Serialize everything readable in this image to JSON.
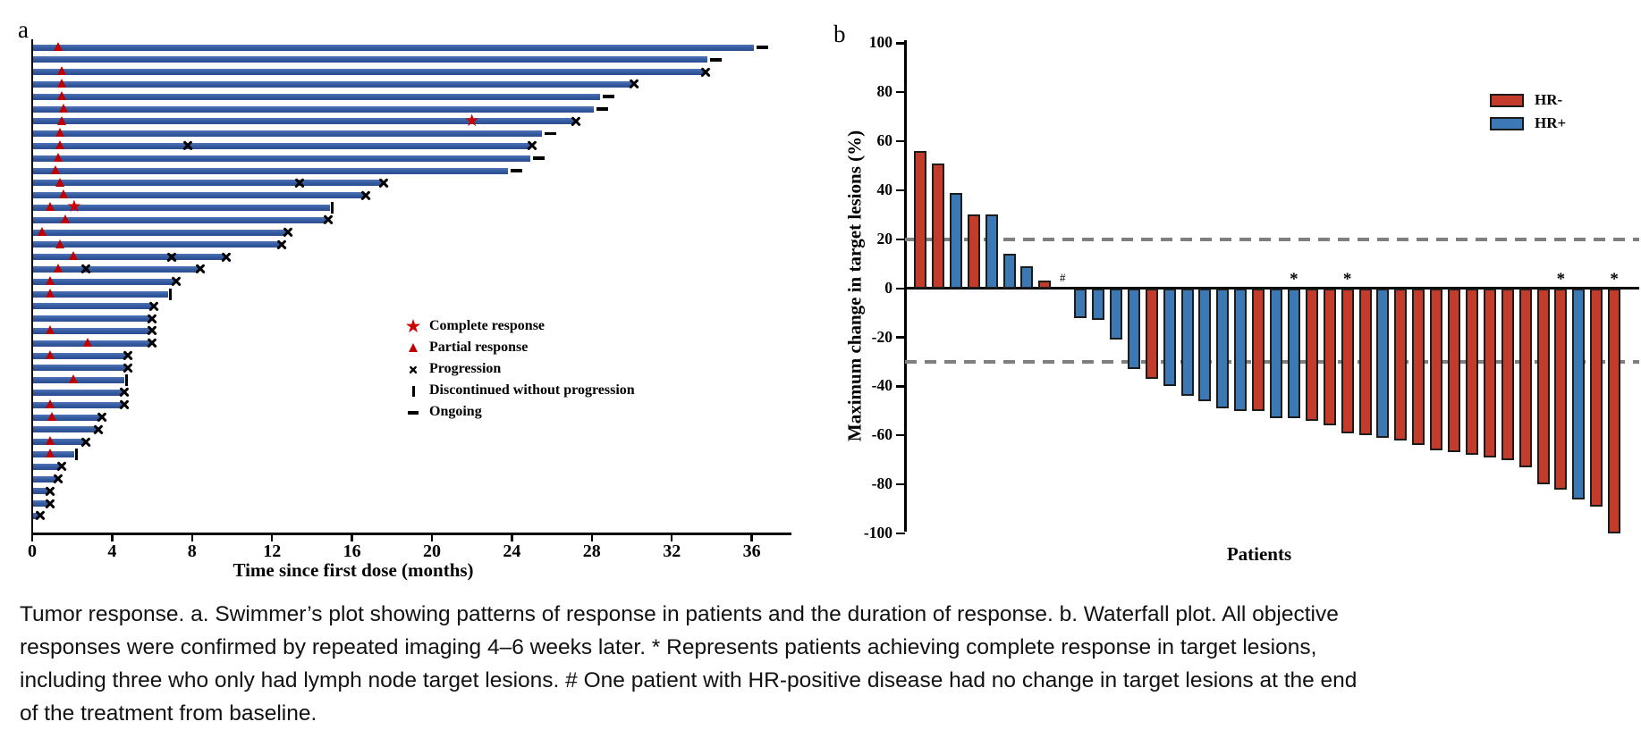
{
  "figure": {
    "panel_a_label": "a",
    "panel_b_label": "b",
    "caption": "Tumor response. a. Swimmer’s plot showing patterns of response in patients and the duration of response. b. Waterfall plot. All objective responses were confirmed by repeated imaging 4–6 weeks later. * Represents patients achieving complete response in target lesions, including three who only had lymph node target lesions. # One patient with HR-positive disease had no change in target lesions at the end of the treatment from baseline."
  },
  "colors": {
    "swimmer_bar_blue": "#33589d",
    "marker_red": "#c00000",
    "star_red": "#cc0000",
    "black": "#000000",
    "dashed_gray": "#7f7f7f",
    "hr_negative_red": "#c23b2b",
    "hr_positive_blue": "#3c79b4"
  },
  "chart_data": [
    {
      "type": "bar",
      "subtype": "swimmer-plot",
      "title": "",
      "xlabel": "Time since first dose (months)",
      "ylabel": "",
      "x_ticks": [
        0,
        4,
        8,
        12,
        16,
        20,
        24,
        28,
        32,
        36
      ],
      "xlim": [
        0,
        38
      ],
      "grid": false,
      "legend_position": "center-right",
      "legend": [
        {
          "marker": "star",
          "label": "Complete response"
        },
        {
          "marker": "triangle",
          "label": "Partial response"
        },
        {
          "marker": "x",
          "label": "Progression"
        },
        {
          "marker": "vbar",
          "label": "Discontinued without progression"
        },
        {
          "marker": "dash",
          "label": "Ongoing"
        }
      ],
      "marker_meaning": {
        "star": "Complete response",
        "triangle": "Partial response",
        "x": "Progression",
        "vbar": "Discontinued without progression",
        "dash": "Ongoing"
      },
      "bars": [
        {
          "len": 36.1,
          "end": "ongoing",
          "pr": [
            1.3
          ]
        },
        {
          "len": 33.8,
          "end": "ongoing",
          "pr": []
        },
        {
          "len": 33.6,
          "end": "progression",
          "pr": [
            1.5
          ]
        },
        {
          "len": 30.0,
          "end": "progression",
          "pr": [
            1.5
          ]
        },
        {
          "len": 28.4,
          "end": "ongoing",
          "pr": [
            1.5
          ]
        },
        {
          "len": 28.1,
          "end": "ongoing",
          "pr": [
            1.6
          ]
        },
        {
          "len": 27.1,
          "end": "progression",
          "pr": [
            1.5
          ],
          "cr": [
            22.0
          ]
        },
        {
          "len": 25.5,
          "end": "ongoing",
          "pr": [
            1.4
          ]
        },
        {
          "len": 24.9,
          "end": "progression",
          "pr": [
            1.4
          ],
          "px": [
            7.8
          ]
        },
        {
          "len": 24.9,
          "end": "ongoing",
          "pr": [
            1.3
          ]
        },
        {
          "len": 23.8,
          "end": "ongoing",
          "pr": [
            1.2
          ]
        },
        {
          "len": 17.5,
          "end": "progression",
          "pr": [
            1.4
          ],
          "px": [
            13.4
          ]
        },
        {
          "len": 16.6,
          "end": "progression",
          "pr": [
            1.6
          ]
        },
        {
          "len": 14.9,
          "end": "discontinued",
          "pr": [
            0.9
          ],
          "cr": [
            2.1
          ]
        },
        {
          "len": 14.7,
          "end": "progression",
          "pr": [
            1.7
          ]
        },
        {
          "len": 12.7,
          "end": "progression",
          "pr": [
            0.5
          ]
        },
        {
          "len": 12.4,
          "end": "progression",
          "pr": [
            1.4
          ]
        },
        {
          "len": 9.6,
          "end": "progression",
          "pr": [
            2.1
          ],
          "px": [
            7.0
          ]
        },
        {
          "len": 8.3,
          "end": "progression",
          "pr": [
            1.3
          ],
          "px": [
            2.7
          ]
        },
        {
          "len": 7.1,
          "end": "progression",
          "pr": [
            0.9
          ]
        },
        {
          "len": 6.8,
          "end": "discontinued",
          "pr": [
            0.9
          ]
        },
        {
          "len": 6.0,
          "end": "progression",
          "pr": []
        },
        {
          "len": 5.9,
          "end": "progression",
          "pr": []
        },
        {
          "len": 5.9,
          "end": "progression",
          "pr": [
            0.9
          ]
        },
        {
          "len": 5.9,
          "end": "progression",
          "pr": [
            2.8
          ]
        },
        {
          "len": 4.7,
          "end": "progression",
          "pr": [
            0.9
          ]
        },
        {
          "len": 4.7,
          "end": "progression",
          "pr": []
        },
        {
          "len": 4.6,
          "end": "discontinued",
          "pr": [
            2.1
          ]
        },
        {
          "len": 4.5,
          "end": "progression",
          "pr": []
        },
        {
          "len": 4.5,
          "end": "progression",
          "pr": [
            0.9
          ]
        },
        {
          "len": 3.4,
          "end": "progression",
          "pr": [
            1.0
          ]
        },
        {
          "len": 3.2,
          "end": "progression",
          "pr": []
        },
        {
          "len": 2.6,
          "end": "progression",
          "pr": [
            0.9
          ]
        },
        {
          "len": 2.1,
          "end": "discontinued",
          "pr": [
            0.9
          ]
        },
        {
          "len": 1.4,
          "end": "progression",
          "pr": []
        },
        {
          "len": 1.2,
          "end": "progression",
          "pr": []
        },
        {
          "len": 0.8,
          "end": "progression",
          "pr": []
        },
        {
          "len": 0.8,
          "end": "progression",
          "pr": []
        },
        {
          "len": 0.3,
          "end": "progression",
          "pr": []
        }
      ]
    },
    {
      "type": "bar",
      "subtype": "waterfall-plot",
      "title": "",
      "xlabel": "Patients",
      "ylabel": "Maximum change in target lesions (%)",
      "y_ticks": [
        100,
        80,
        60,
        40,
        20,
        0,
        -20,
        -40,
        -60,
        -80,
        -100
      ],
      "ylim": [
        -100,
        100
      ],
      "grid": false,
      "reference_lines": [
        20,
        -30
      ],
      "legend_position": "top-right",
      "legend": [
        {
          "label": "HR-",
          "color": "#c23b2b"
        },
        {
          "label": "HR+",
          "color": "#3c79b4"
        }
      ],
      "annotations_meaning": {
        "*": "complete response in target lesions",
        "#": "no change in target lesions from baseline"
      },
      "bars": [
        {
          "v": 56,
          "group": "HR-"
        },
        {
          "v": 51,
          "group": "HR-"
        },
        {
          "v": 39,
          "group": "HR+"
        },
        {
          "v": 30,
          "group": "HR-"
        },
        {
          "v": 30,
          "group": "HR+"
        },
        {
          "v": 14,
          "group": "HR+"
        },
        {
          "v": 9,
          "group": "HR+"
        },
        {
          "v": 3,
          "group": "HR-"
        },
        {
          "v": 0,
          "group": "HR+",
          "note": "#"
        },
        {
          "v": -12,
          "group": "HR+"
        },
        {
          "v": -13,
          "group": "HR+"
        },
        {
          "v": -21,
          "group": "HR+"
        },
        {
          "v": -33,
          "group": "HR+"
        },
        {
          "v": -37,
          "group": "HR-"
        },
        {
          "v": -40,
          "group": "HR+"
        },
        {
          "v": -44,
          "group": "HR+"
        },
        {
          "v": -46,
          "group": "HR+"
        },
        {
          "v": -49,
          "group": "HR+"
        },
        {
          "v": -50,
          "group": "HR+"
        },
        {
          "v": -50,
          "group": "HR-"
        },
        {
          "v": -53,
          "group": "HR+"
        },
        {
          "v": -53,
          "group": "HR+",
          "note": "*"
        },
        {
          "v": -54,
          "group": "HR-"
        },
        {
          "v": -56,
          "group": "HR-"
        },
        {
          "v": -59,
          "group": "HR-",
          "note": "*"
        },
        {
          "v": -60,
          "group": "HR-"
        },
        {
          "v": -61,
          "group": "HR+"
        },
        {
          "v": -62,
          "group": "HR-"
        },
        {
          "v": -64,
          "group": "HR-"
        },
        {
          "v": -66,
          "group": "HR-"
        },
        {
          "v": -67,
          "group": "HR-"
        },
        {
          "v": -68,
          "group": "HR-"
        },
        {
          "v": -69,
          "group": "HR-"
        },
        {
          "v": -70,
          "group": "HR-"
        },
        {
          "v": -73,
          "group": "HR-"
        },
        {
          "v": -80,
          "group": "HR-"
        },
        {
          "v": -82,
          "group": "HR-",
          "note": "*"
        },
        {
          "v": -86,
          "group": "HR+"
        },
        {
          "v": -89,
          "group": "HR-"
        },
        {
          "v": -100,
          "group": "HR-",
          "note": "*"
        }
      ]
    }
  ]
}
